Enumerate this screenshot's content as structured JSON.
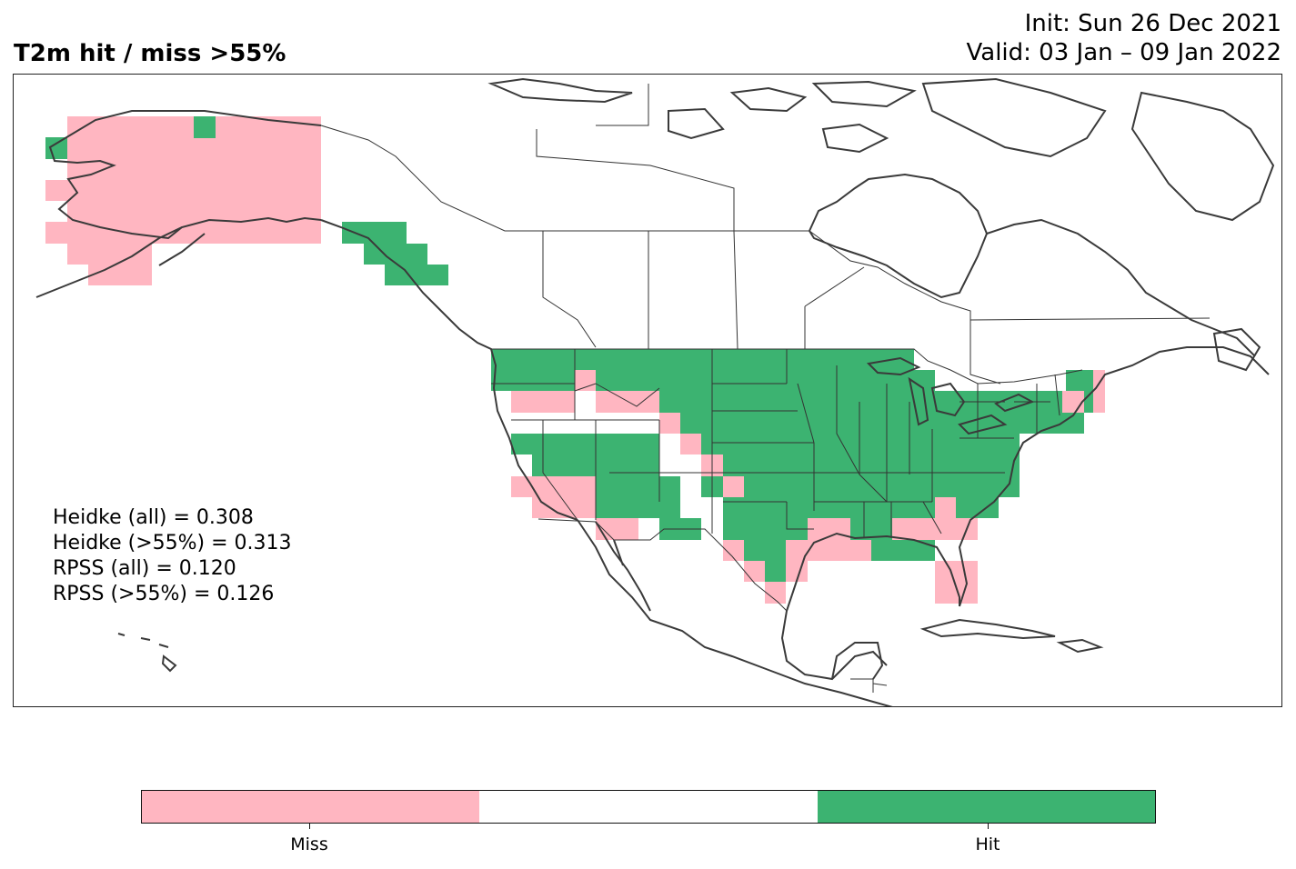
{
  "title": {
    "left": "T2m hit / miss  >55%",
    "init": "Init: Sun 26 Dec 2021",
    "valid": "Valid: 03 Jan – 09 Jan 2022"
  },
  "scores": [
    "Heidke (all) = 0.308",
    "Heidke (>55%) = 0.313",
    "RPSS (all) = 0.120",
    "RPSS (>55%) = 0.126"
  ],
  "legend": {
    "miss_label": "Miss",
    "hit_label": "Hit",
    "colors": {
      "miss": "#FFB6C1",
      "neutral": "#FFFFFF",
      "hit": "#3CB371"
    }
  },
  "map": {
    "projection": "plate-carree",
    "region": "North America",
    "lon_range": [
      -180,
      -40
    ],
    "lat_range": [
      5,
      75
    ]
  }
}
